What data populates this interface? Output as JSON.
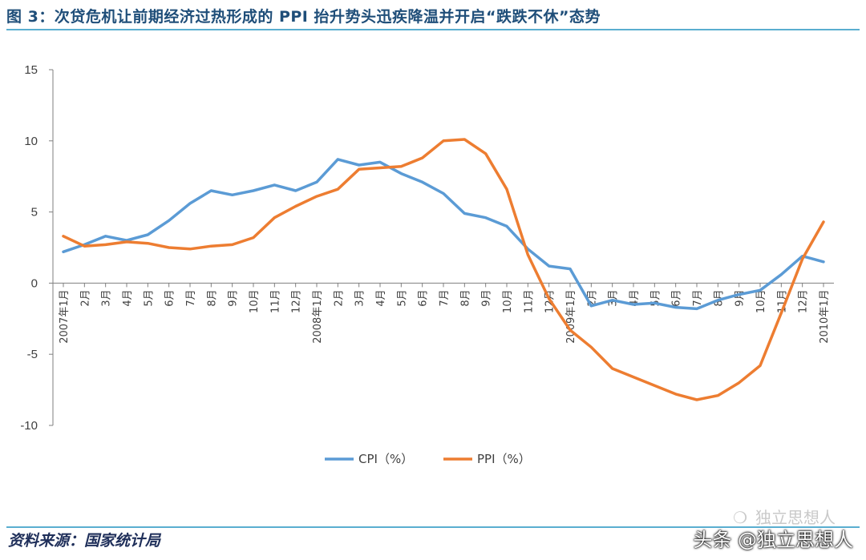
{
  "figure_title": "图 3：次贷危机让前期经济过热形成的 PPI 抬升势头迅疾降温并开启“跌跌不休”态势",
  "source_note": "资料来源：国家统计局",
  "watermark_faint": "独立思想人",
  "watermark": "头条 @独立思想人",
  "colors": {
    "title": "#1f4e79",
    "rule": "#5aaed0",
    "axis": "#7f7f7f",
    "tick_text": "#404040"
  },
  "chart_data": {
    "type": "line",
    "title": "",
    "xlabel": "",
    "ylabel": "",
    "ylim": [
      -10,
      15
    ],
    "yticks": [
      -10,
      -5,
      0,
      5,
      10,
      15
    ],
    "grid": false,
    "legend_position": "bottom",
    "x": [
      "2007年1月",
      "2月",
      "3月",
      "4月",
      "5月",
      "6月",
      "7月",
      "8月",
      "9月",
      "10月",
      "11月",
      "12月",
      "2008年1月",
      "2月",
      "3月",
      "4月",
      "5月",
      "6月",
      "7月",
      "8月",
      "9月",
      "10月",
      "11月",
      "12月",
      "2009年1月",
      "2月",
      "3月",
      "4月",
      "5月",
      "6月",
      "7月",
      "8月",
      "9月",
      "10月",
      "11月",
      "12月",
      "2010年1月"
    ],
    "series": [
      {
        "name": "CPI（%）",
        "color": "#5b9bd5",
        "values": [
          2.2,
          2.7,
          3.3,
          3.0,
          3.4,
          4.4,
          5.6,
          6.5,
          6.2,
          6.5,
          6.9,
          6.5,
          7.1,
          8.7,
          8.3,
          8.5,
          7.7,
          7.1,
          6.3,
          4.9,
          4.6,
          4.0,
          2.4,
          1.2,
          1.0,
          -1.6,
          -1.2,
          -1.5,
          -1.4,
          -1.7,
          -1.8,
          -1.2,
          -0.8,
          -0.5,
          0.6,
          1.9,
          1.5
        ]
      },
      {
        "name": "PPI（%）",
        "color": "#ed7d31",
        "values": [
          3.3,
          2.6,
          2.7,
          2.9,
          2.8,
          2.5,
          2.4,
          2.6,
          2.7,
          3.2,
          4.6,
          5.4,
          6.1,
          6.6,
          8.0,
          8.1,
          8.2,
          8.8,
          10.0,
          10.1,
          9.1,
          6.6,
          2.0,
          -1.1,
          -3.3,
          -4.5,
          -6.0,
          -6.6,
          -7.2,
          -7.8,
          -8.2,
          -7.9,
          -7.0,
          -5.8,
          -2.1,
          1.7,
          4.3
        ]
      }
    ]
  }
}
